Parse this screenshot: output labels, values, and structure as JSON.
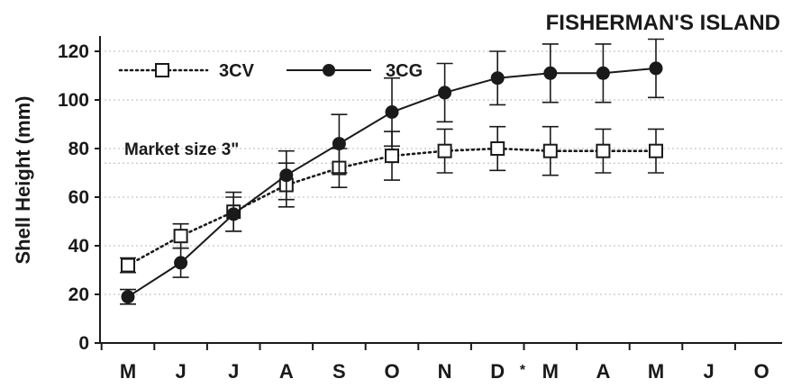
{
  "chart_data": {
    "type": "line",
    "title": "FISHERMAN'S ISLAND",
    "xlabel": "",
    "ylabel": "Shell Height (mm)",
    "categories": [
      "M",
      "J",
      "J",
      "A",
      "S",
      "O",
      "N",
      "D",
      "M",
      "A",
      "M",
      "J",
      "O"
    ],
    "ylim": [
      0,
      130
    ],
    "yticks": [
      0,
      20,
      40,
      60,
      80,
      100,
      120
    ],
    "grid": true,
    "legend_position": "top-left",
    "annotations": [
      {
        "text": "Market size 3\"",
        "y": 74
      },
      {
        "text": "*",
        "x_between": [
          "D",
          "M"
        ]
      }
    ],
    "series": [
      {
        "name": "3CV",
        "style": "dotted",
        "marker": "open-square",
        "values": [
          32,
          44,
          54,
          65,
          72,
          77,
          79,
          80,
          79,
          79,
          79,
          null,
          null
        ],
        "errors": [
          3,
          5,
          8,
          9,
          8,
          10,
          9,
          9,
          10,
          9,
          9,
          null,
          null
        ]
      },
      {
        "name": "3CG",
        "style": "solid",
        "marker": "filled-circle",
        "values": [
          19,
          33,
          53,
          69,
          82,
          95,
          103,
          109,
          111,
          111,
          113,
          null,
          null
        ],
        "errors": [
          3,
          6,
          7,
          10,
          12,
          14,
          12,
          11,
          12,
          12,
          12,
          null,
          null
        ]
      }
    ],
    "colors": {
      "ink": "#1a1a1a",
      "grid": "#b8b8b8",
      "background": "#ffffff"
    }
  }
}
